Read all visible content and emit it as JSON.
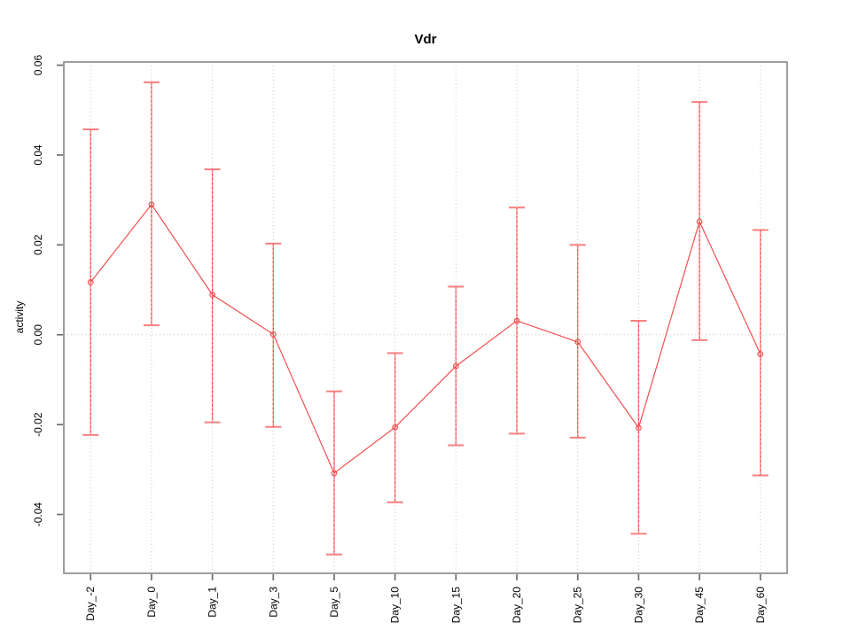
{
  "figure": {
    "title": "Vdr",
    "y_axis_label": "activity"
  },
  "chart_data": {
    "type": "line",
    "title": "Vdr",
    "xlabel": "",
    "ylabel": "activity",
    "legend": "none",
    "grid": {
      "vertical_dotted_at_categories": true,
      "horizontal_dotted_zero_line": true
    },
    "categories": [
      "Day_-2",
      "Day_0",
      "Day_1",
      "Day_3",
      "Day_5",
      "Day_10",
      "Day_15",
      "Day_20",
      "Day_25",
      "Day_30",
      "Day_45",
      "Day_60"
    ],
    "series": [
      {
        "name": "Vdr activity",
        "values": [
          0.0117,
          0.029,
          0.0089,
          0.0001,
          -0.0308,
          -0.0206,
          -0.007,
          0.0031,
          -0.0016,
          -0.0207,
          0.0252,
          -0.0043
        ],
        "ci_low": [
          -0.0223,
          0.0021,
          -0.0195,
          -0.0205,
          -0.0489,
          -0.0373,
          -0.0246,
          -0.022,
          -0.0229,
          -0.0443,
          -0.0012,
          -0.0313
        ],
        "ci_high": [
          0.0457,
          0.0562,
          0.0368,
          0.0203,
          -0.0126,
          -0.0041,
          0.0107,
          0.0283,
          0.02,
          0.0031,
          0.0518,
          0.0233
        ]
      }
    ],
    "error_bars": true,
    "marker": "open-circle",
    "ytick_labels": [
      "-0.04",
      "-0.02",
      "0.00",
      "0.02",
      "0.04",
      "0.06"
    ],
    "ytick_values": [
      -0.04,
      -0.02,
      0.0,
      0.02,
      0.04,
      0.06
    ],
    "ylim": [
      -0.0531,
      0.0607
    ],
    "colors": {
      "line": "#f25151",
      "marker": "#f25151",
      "error_bar_fill": "#fa9191",
      "error_bar_dash": "#ee4040",
      "error_bar_cap": "#f97f7f",
      "grid": "#c9c9c9",
      "box": "#8e8e8e",
      "tick": "#6e6e6e",
      "text": "#000000"
    }
  }
}
